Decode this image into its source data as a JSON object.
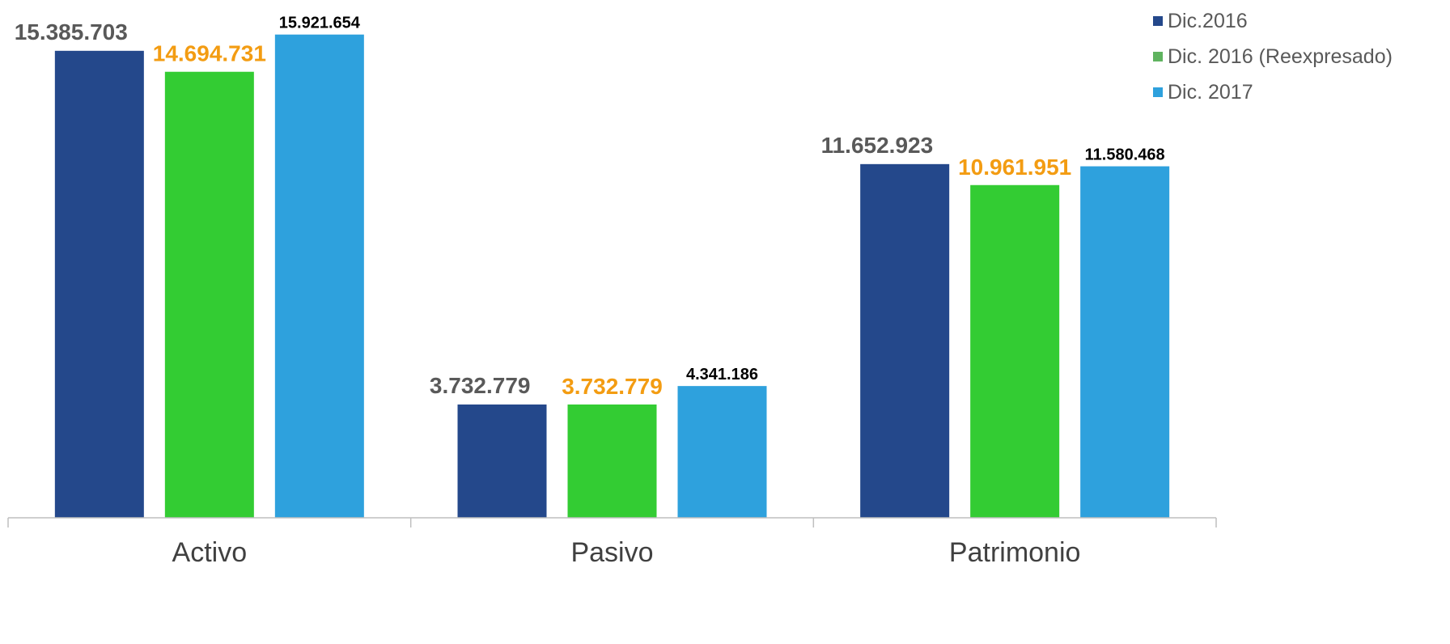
{
  "chart_data": {
    "type": "bar",
    "categories": [
      "Activo",
      "Pasivo",
      "Patrimonio"
    ],
    "series": [
      {
        "name": "Dic.2016",
        "color": "#24488B",
        "label_color": "#595959",
        "values": [
          15385703,
          3732779,
          11652923
        ],
        "labels": [
          "15.385.703",
          "3.732.779",
          "11.652.923"
        ]
      },
      {
        "name": "Dic. 2016 (Reexpresado)",
        "color": "#33CC33",
        "label_color": "#F39C12",
        "values": [
          14694731,
          3732779,
          10961951
        ],
        "labels": [
          "14.694.731",
          "3.732.779",
          "10.961.951"
        ]
      },
      {
        "name": "Dic. 2017",
        "color": "#2EA1DD",
        "label_color": "#000000",
        "values": [
          15921654,
          4341186,
          11580468
        ],
        "labels": [
          "15.921.654",
          "4.341.186",
          "11.580.468"
        ]
      }
    ],
    "ylim": [
      0,
      16500000
    ],
    "grid": false,
    "legend_position": "top-right",
    "xlabel": "",
    "ylabel": ""
  }
}
